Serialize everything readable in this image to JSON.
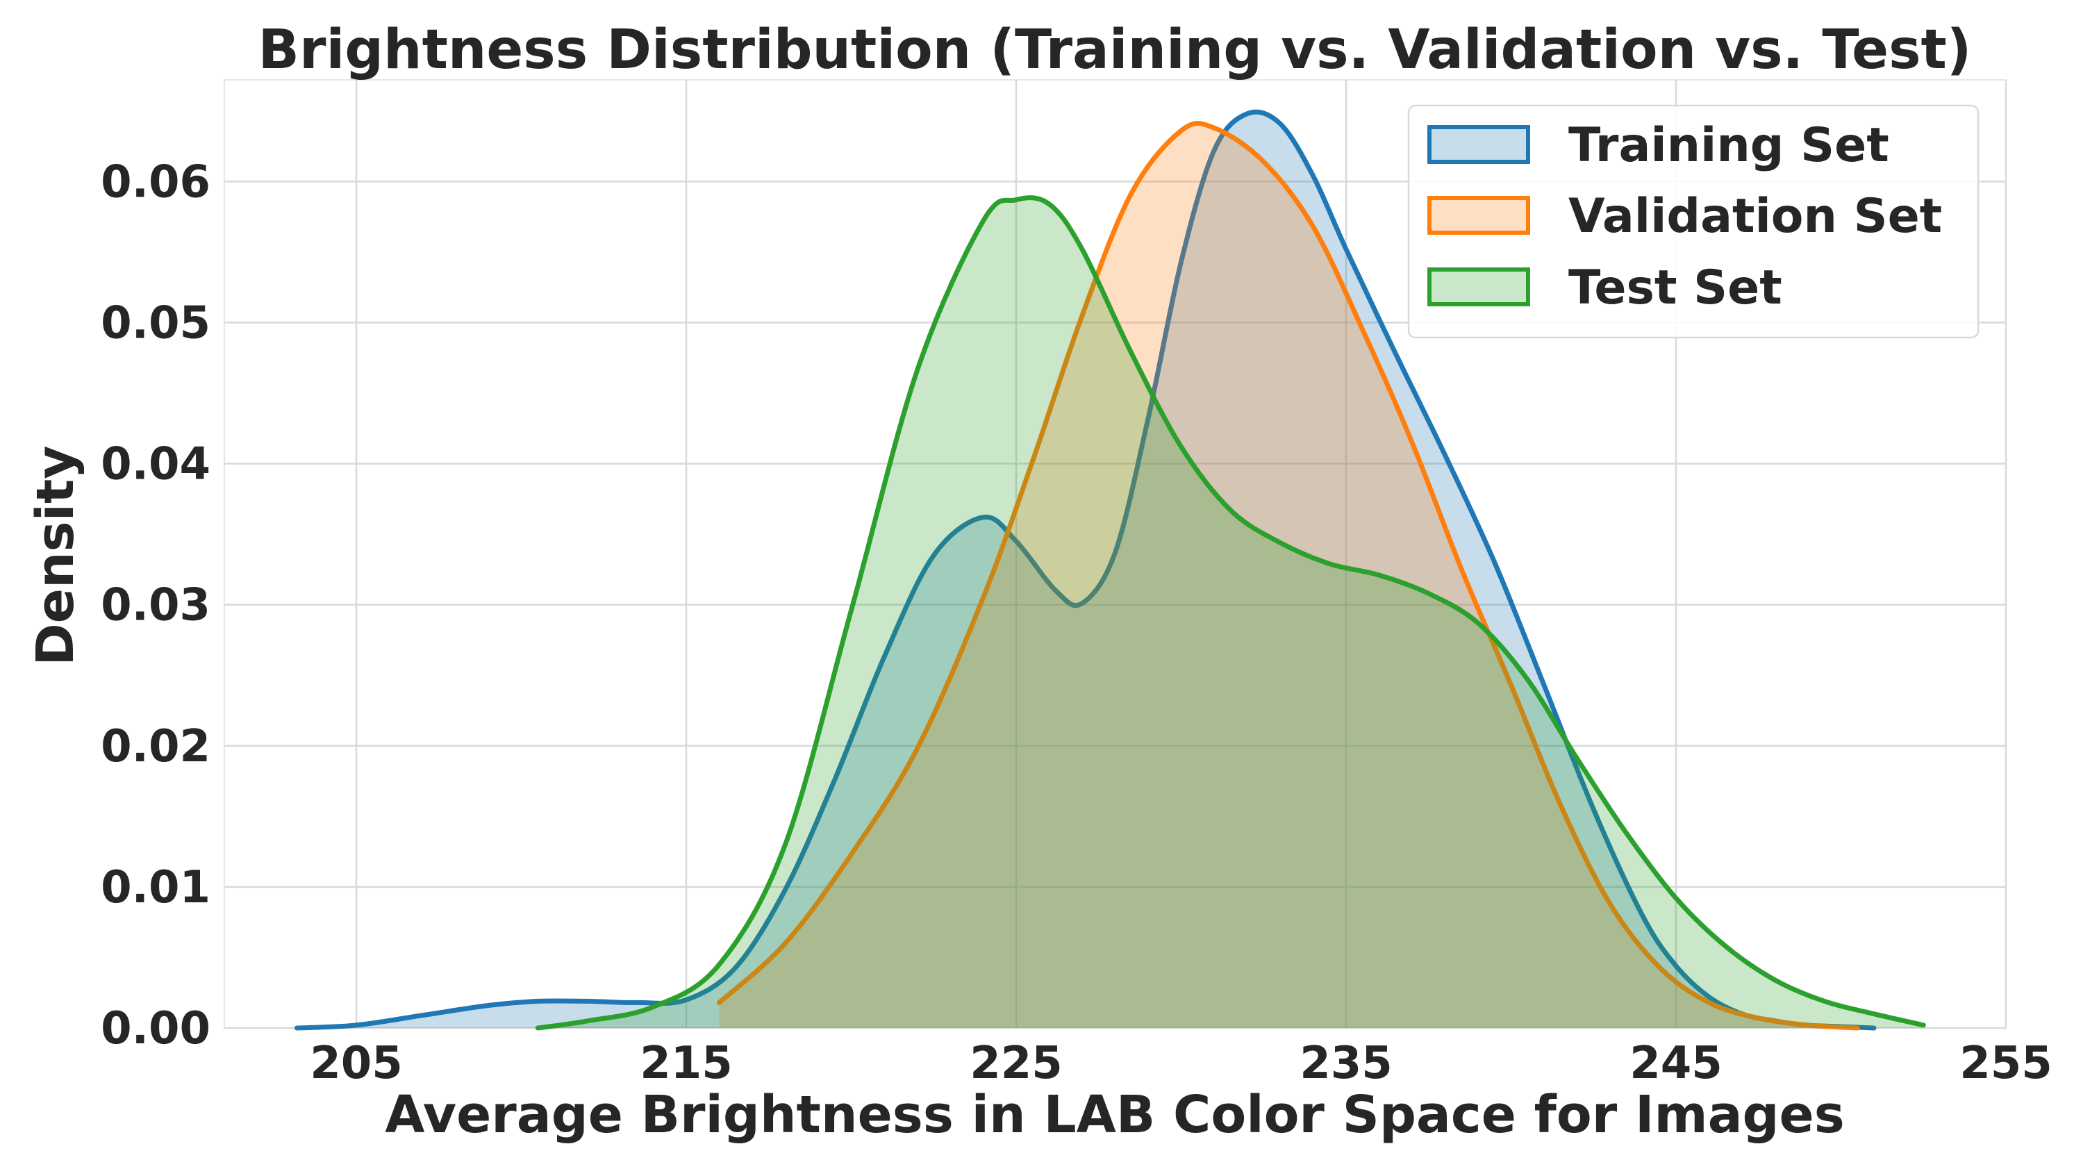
{
  "chart_data": {
    "type": "area",
    "title": "Brightness Distribution (Training vs. Validation vs. Test)",
    "xlabel": "Average Brightness in LAB Color Space for Images",
    "ylabel": "Density",
    "xlim": [
      201,
      255
    ],
    "ylim": [
      0,
      0.0672
    ],
    "xticks": [
      205,
      215,
      225,
      235,
      245,
      255
    ],
    "xtick_labels": [
      "205",
      "215",
      "225",
      "235",
      "245",
      "255"
    ],
    "yticks": [
      0,
      0.01,
      0.02,
      0.03,
      0.04,
      0.05,
      0.06
    ],
    "ytick_labels": [
      "0.00",
      "0.01",
      "0.02",
      "0.03",
      "0.04",
      "0.05",
      "0.06"
    ],
    "grid": true,
    "legend_position": "top-right",
    "series": [
      {
        "name": "Training Set",
        "color": "#1f77b4",
        "fill_color": "#1f77b4",
        "x": [
          203.2,
          205,
          207,
          209,
          210.5,
          212,
          213.5,
          215,
          216.5,
          218,
          219.5,
          221,
          222.5,
          224,
          225,
          226.2,
          227,
          228,
          229,
          230,
          231,
          232,
          233,
          234,
          235,
          236.5,
          238,
          239.5,
          241,
          242.5,
          244,
          245,
          246,
          247,
          248,
          249,
          250,
          251
        ],
        "y": [
          0.0,
          0.0002,
          0.0009,
          0.0016,
          0.0019,
          0.0019,
          0.0018,
          0.002,
          0.0043,
          0.0098,
          0.0176,
          0.0263,
          0.0335,
          0.0362,
          0.0345,
          0.031,
          0.0301,
          0.0337,
          0.0432,
          0.0543,
          0.0622,
          0.0648,
          0.0641,
          0.0604,
          0.0552,
          0.0478,
          0.0406,
          0.033,
          0.0243,
          0.0155,
          0.0079,
          0.0044,
          0.0022,
          0.001,
          0.0005,
          0.0002,
          0.0001,
          0.0
        ]
      },
      {
        "name": "Validation Set",
        "color": "#ff7f0e",
        "fill_color": "#ff7f0e",
        "x": [
          216,
          218,
          220,
          222,
          224,
          225.5,
          227,
          228.5,
          230,
          231,
          232.5,
          234,
          235.5,
          237,
          238.5,
          240,
          241.5,
          243,
          244.5,
          246,
          247.5,
          249,
          250.5
        ],
        "y": [
          0.0018,
          0.006,
          0.0123,
          0.0198,
          0.0305,
          0.0402,
          0.0505,
          0.0592,
          0.0636,
          0.0638,
          0.0614,
          0.0568,
          0.0495,
          0.0415,
          0.0325,
          0.0243,
          0.0158,
          0.0088,
          0.0043,
          0.0018,
          0.0007,
          0.0002,
          0.0
        ]
      },
      {
        "name": "Test Set",
        "color": "#2ca02c",
        "fill_color": "#2ca02c",
        "x": [
          210.5,
          212,
          214,
          216,
          218,
          220,
          222,
          224,
          225,
          226,
          227,
          228.5,
          230,
          231.5,
          233,
          234.5,
          236,
          237.5,
          239,
          240.5,
          242,
          243.5,
          245,
          246.5,
          248,
          249.5,
          251,
          252.5
        ],
        "y": [
          0.0,
          0.0005,
          0.0015,
          0.0045,
          0.013,
          0.0296,
          0.0466,
          0.0572,
          0.0587,
          0.0584,
          0.0552,
          0.0478,
          0.0412,
          0.0367,
          0.0344,
          0.0329,
          0.0321,
          0.0308,
          0.0287,
          0.0247,
          0.0191,
          0.0138,
          0.0092,
          0.0058,
          0.0034,
          0.0019,
          0.001,
          0.0002
        ]
      }
    ]
  }
}
